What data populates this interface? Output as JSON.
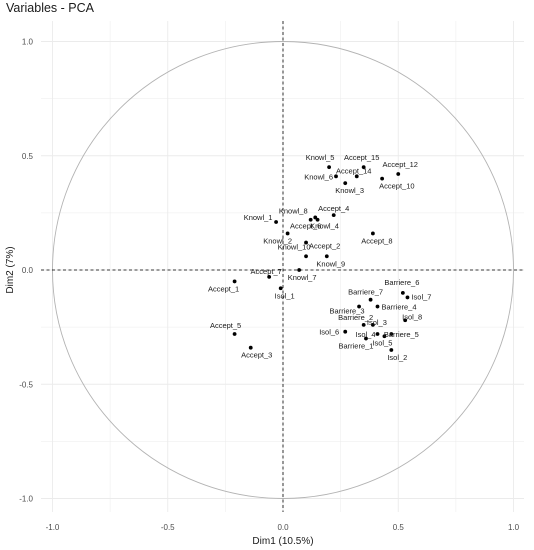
{
  "chart_data": {
    "type": "scatter",
    "title": "Variables - PCA",
    "xlabel": "Dim1 (10.5%)",
    "ylabel": "Dim2 (7%)",
    "xlim": [
      -1.0,
      1.0
    ],
    "ylim": [
      -1.0,
      1.0
    ],
    "x_ticks": [
      "-1.0",
      "-0.5",
      "0.0",
      "0.5",
      "1.0"
    ],
    "y_ticks": [
      "1.0",
      "0.5",
      "0.0",
      "-0.5",
      "-1.0"
    ],
    "grid": true,
    "unit_circle": true,
    "point_color": "#000000",
    "circle_color": "#b3b3b3",
    "grid_color": "#ebebeb",
    "points": [
      {
        "name": "Knowl_5",
        "x": 0.2,
        "y": 0.45
      },
      {
        "name": "Accept_15",
        "x": 0.35,
        "y": 0.45
      },
      {
        "name": "Accept_12",
        "x": 0.5,
        "y": 0.42
      },
      {
        "name": "Knowl_6",
        "x": 0.23,
        "y": 0.41
      },
      {
        "name": "Accept_14",
        "x": 0.32,
        "y": 0.41
      },
      {
        "name": "Accept_10",
        "x": 0.43,
        "y": 0.4
      },
      {
        "name": "Knowl_3",
        "x": 0.27,
        "y": 0.38
      },
      {
        "name": "Knowl_8",
        "x": 0.14,
        "y": 0.23
      },
      {
        "name": "Accept_4",
        "x": 0.22,
        "y": 0.24
      },
      {
        "name": "Knowl_1",
        "x": -0.03,
        "y": 0.21
      },
      {
        "name": "Accept_6",
        "x": 0.12,
        "y": 0.22
      },
      {
        "name": "Knowl_4",
        "x": 0.15,
        "y": 0.22
      },
      {
        "name": "Knowl_2",
        "x": 0.02,
        "y": 0.16
      },
      {
        "name": "Accept_8",
        "x": 0.39,
        "y": 0.16
      },
      {
        "name": "Accept_2",
        "x": 0.1,
        "y": 0.12
      },
      {
        "name": "Knowl_10",
        "x": 0.1,
        "y": 0.06
      },
      {
        "name": "Knowl_9",
        "x": 0.19,
        "y": 0.06
      },
      {
        "name": "Knowl_7",
        "x": 0.07,
        "y": 0.0
      },
      {
        "name": "Accept_7",
        "x": -0.06,
        "y": -0.03
      },
      {
        "name": "Accept_1",
        "x": -0.21,
        "y": -0.05
      },
      {
        "name": "Isol_1",
        "x": -0.01,
        "y": -0.08
      },
      {
        "name": "Barriere_6",
        "x": 0.52,
        "y": -0.1
      },
      {
        "name": "Isol_7",
        "x": 0.54,
        "y": -0.12
      },
      {
        "name": "Barriere_7",
        "x": 0.38,
        "y": -0.13
      },
      {
        "name": "Barriere_3",
        "x": 0.33,
        "y": -0.16
      },
      {
        "name": "Barriere_4",
        "x": 0.41,
        "y": -0.16
      },
      {
        "name": "Barriere_2",
        "x": 0.35,
        "y": -0.24
      },
      {
        "name": "Isol_3",
        "x": 0.39,
        "y": -0.24
      },
      {
        "name": "Isol_8",
        "x": 0.53,
        "y": -0.22
      },
      {
        "name": "Isol_6",
        "x": 0.27,
        "y": -0.27
      },
      {
        "name": "Isol_4",
        "x": 0.41,
        "y": -0.28
      },
      {
        "name": "Barriere_5",
        "x": 0.47,
        "y": -0.28
      },
      {
        "name": "Barriere_1",
        "x": 0.36,
        "y": -0.3
      },
      {
        "name": "Isol_5",
        "x": 0.44,
        "y": -0.29
      },
      {
        "name": "Isol_2",
        "x": 0.47,
        "y": -0.35
      },
      {
        "name": "Accept_5",
        "x": -0.21,
        "y": -0.28
      },
      {
        "name": "Accept_3",
        "x": -0.14,
        "y": -0.34
      }
    ]
  }
}
